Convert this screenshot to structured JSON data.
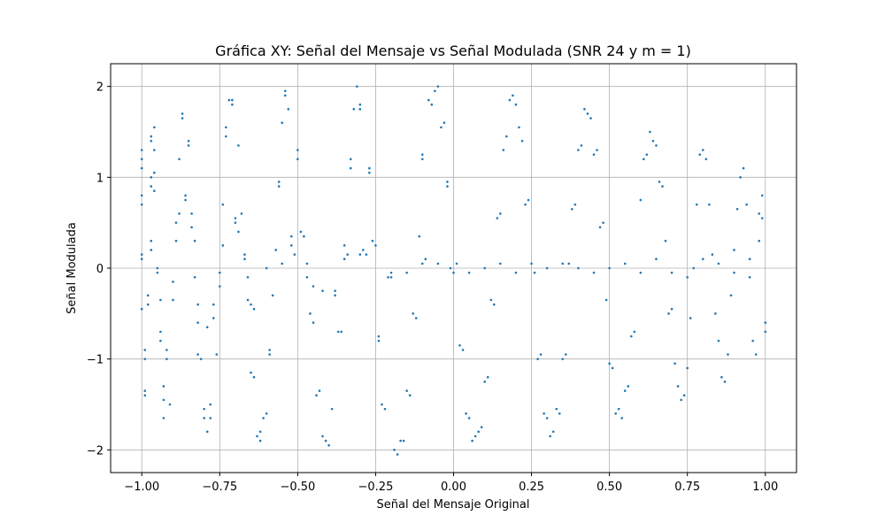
{
  "chart_data": {
    "type": "scatter",
    "title": "Gráfica XY: Señal del Mensaje vs Señal Modulada (SNR 24 y m = 1)",
    "xlabel": "Señal del Mensaje Original",
    "ylabel": "Señal Modulada",
    "xlim": [
      -1.1,
      1.1
    ],
    "ylim": [
      -2.25,
      2.25
    ],
    "grid": true,
    "marker_color": "#1f77b4",
    "x_ticks": [
      -1.0,
      -0.75,
      -0.5,
      -0.25,
      0.0,
      0.25,
      0.5,
      0.75,
      1.0
    ],
    "x_tick_labels": [
      "−1.00",
      "−0.75",
      "−0.50",
      "−0.25",
      "0.00",
      "0.25",
      "0.50",
      "0.75",
      "1.00"
    ],
    "y_ticks": [
      -2,
      -1,
      0,
      1,
      2
    ],
    "y_tick_labels": [
      "−2",
      "−1",
      "0",
      "1",
      "2"
    ],
    "series": [
      {
        "points": [
          [
            -1.0,
            1.3
          ],
          [
            -1.0,
            1.2
          ],
          [
            -1.0,
            1.1
          ],
          [
            -1.0,
            0.8
          ],
          [
            -1.0,
            0.7
          ],
          [
            -1.0,
            0.15
          ],
          [
            -1.0,
            0.1
          ],
          [
            -1.0,
            -0.45
          ],
          [
            -0.99,
            -0.9
          ],
          [
            -0.99,
            -1.0
          ],
          [
            -0.99,
            -1.35
          ],
          [
            -0.99,
            -1.4
          ],
          [
            -0.98,
            -0.3
          ],
          [
            -0.98,
            -0.4
          ],
          [
            -0.97,
            1.4
          ],
          [
            -0.97,
            1.45
          ],
          [
            -0.97,
            1.0
          ],
          [
            -0.97,
            0.9
          ],
          [
            -0.97,
            0.3
          ],
          [
            -0.97,
            0.2
          ],
          [
            -0.96,
            1.55
          ],
          [
            -0.96,
            1.3
          ],
          [
            -0.96,
            1.05
          ],
          [
            -0.96,
            0.85
          ],
          [
            -0.95,
            0.0
          ],
          [
            -0.95,
            -0.05
          ],
          [
            -0.94,
            -0.35
          ],
          [
            -0.94,
            -0.7
          ],
          [
            -0.94,
            -0.8
          ],
          [
            -0.93,
            -1.3
          ],
          [
            -0.93,
            -1.45
          ],
          [
            -0.93,
            -1.65
          ],
          [
            -0.92,
            -0.9
          ],
          [
            -0.92,
            -1.0
          ],
          [
            -0.91,
            -1.5
          ],
          [
            -0.9,
            -0.35
          ],
          [
            -0.9,
            -0.15
          ],
          [
            -0.89,
            0.3
          ],
          [
            -0.89,
            0.5
          ],
          [
            -0.88,
            0.6
          ],
          [
            -0.88,
            1.2
          ],
          [
            -0.87,
            1.65
          ],
          [
            -0.87,
            1.7
          ],
          [
            -0.86,
            0.8
          ],
          [
            -0.86,
            0.75
          ],
          [
            -0.85,
            1.4
          ],
          [
            -0.85,
            1.35
          ],
          [
            -0.84,
            0.6
          ],
          [
            -0.84,
            0.45
          ],
          [
            -0.83,
            0.3
          ],
          [
            -0.83,
            -0.1
          ],
          [
            -0.82,
            -0.4
          ],
          [
            -0.82,
            -0.6
          ],
          [
            -0.82,
            -0.95
          ],
          [
            -0.81,
            -1.0
          ],
          [
            -0.8,
            -1.55
          ],
          [
            -0.8,
            -1.65
          ],
          [
            -0.79,
            -1.8
          ],
          [
            -0.79,
            -0.65
          ],
          [
            -0.78,
            -1.5
          ],
          [
            -0.78,
            -1.65
          ],
          [
            -0.77,
            -0.55
          ],
          [
            -0.77,
            -0.4
          ],
          [
            -0.76,
            -0.95
          ],
          [
            -0.75,
            -0.2
          ],
          [
            -0.75,
            -0.05
          ],
          [
            -0.74,
            0.25
          ],
          [
            -0.74,
            0.7
          ],
          [
            -0.73,
            1.45
          ],
          [
            -0.73,
            1.55
          ],
          [
            -0.72,
            1.85
          ],
          [
            -0.71,
            1.85
          ],
          [
            -0.71,
            1.8
          ],
          [
            -0.7,
            0.5
          ],
          [
            -0.7,
            0.55
          ],
          [
            -0.69,
            1.35
          ],
          [
            -0.69,
            0.4
          ],
          [
            -0.68,
            0.6
          ],
          [
            -0.67,
            0.1
          ],
          [
            -0.67,
            0.15
          ],
          [
            -0.66,
            -0.1
          ],
          [
            -0.66,
            -0.35
          ],
          [
            -0.65,
            -0.4
          ],
          [
            -0.65,
            -1.15
          ],
          [
            -0.64,
            -1.2
          ],
          [
            -0.64,
            -0.45
          ],
          [
            -0.63,
            -1.85
          ],
          [
            -0.62,
            -1.8
          ],
          [
            -0.62,
            -1.9
          ],
          [
            -0.61,
            -1.65
          ],
          [
            -0.6,
            -1.6
          ],
          [
            -0.59,
            -0.95
          ],
          [
            -0.59,
            -0.9
          ],
          [
            -0.58,
            -0.3
          ],
          [
            -0.57,
            0.2
          ],
          [
            -0.56,
            0.9
          ],
          [
            -0.56,
            0.95
          ],
          [
            -0.55,
            1.6
          ],
          [
            -0.54,
            1.9
          ],
          [
            -0.54,
            1.95
          ],
          [
            -0.53,
            1.75
          ],
          [
            -0.52,
            0.35
          ],
          [
            -0.52,
            0.25
          ],
          [
            -0.51,
            0.15
          ],
          [
            -0.5,
            1.2
          ],
          [
            -0.5,
            1.3
          ],
          [
            -0.49,
            0.4
          ],
          [
            -0.48,
            0.35
          ],
          [
            -0.47,
            0.05
          ],
          [
            -0.47,
            -0.1
          ],
          [
            -0.46,
            -0.5
          ],
          [
            -0.45,
            -0.6
          ],
          [
            -0.44,
            -1.4
          ],
          [
            -0.43,
            -1.35
          ],
          [
            -0.42,
            -1.85
          ],
          [
            -0.41,
            -1.9
          ],
          [
            -0.4,
            -1.95
          ],
          [
            -0.39,
            -1.55
          ],
          [
            -0.38,
            -0.25
          ],
          [
            -0.38,
            -0.3
          ],
          [
            -0.37,
            -0.7
          ],
          [
            -0.36,
            -0.7
          ],
          [
            -0.35,
            0.25
          ],
          [
            -0.34,
            0.15
          ],
          [
            -0.33,
            1.2
          ],
          [
            -0.33,
            1.1
          ],
          [
            -0.32,
            1.75
          ],
          [
            -0.31,
            2.0
          ],
          [
            -0.3,
            1.8
          ],
          [
            -0.3,
            1.75
          ],
          [
            -0.29,
            0.2
          ],
          [
            -0.28,
            0.15
          ],
          [
            -0.27,
            1.05
          ],
          [
            -0.27,
            1.1
          ],
          [
            -0.26,
            0.3
          ],
          [
            -0.25,
            0.25
          ],
          [
            -0.24,
            -0.75
          ],
          [
            -0.24,
            -0.8
          ],
          [
            -0.23,
            -1.5
          ],
          [
            -0.22,
            -1.55
          ],
          [
            -0.21,
            -0.1
          ],
          [
            -0.2,
            -0.05
          ],
          [
            -0.19,
            -2.0
          ],
          [
            -0.18,
            -2.05
          ],
          [
            -0.17,
            -1.9
          ],
          [
            -0.16,
            -1.9
          ],
          [
            -0.15,
            -1.35
          ],
          [
            -0.14,
            -1.4
          ],
          [
            -0.13,
            -0.5
          ],
          [
            -0.12,
            -0.55
          ],
          [
            -0.11,
            0.35
          ],
          [
            -0.1,
            1.2
          ],
          [
            -0.1,
            1.25
          ],
          [
            -0.09,
            0.1
          ],
          [
            -0.08,
            1.85
          ],
          [
            -0.07,
            1.8
          ],
          [
            -0.06,
            1.95
          ],
          [
            -0.05,
            2.0
          ],
          [
            -0.04,
            1.55
          ],
          [
            -0.03,
            1.6
          ],
          [
            -0.02,
            0.9
          ],
          [
            -0.02,
            0.95
          ],
          [
            -0.01,
            0.0
          ],
          [
            0.0,
            -0.05
          ],
          [
            0.01,
            0.05
          ],
          [
            0.02,
            -0.85
          ],
          [
            0.03,
            -0.9
          ],
          [
            0.04,
            -1.6
          ],
          [
            0.05,
            -1.65
          ],
          [
            0.06,
            -1.9
          ],
          [
            0.07,
            -1.85
          ],
          [
            0.08,
            -1.8
          ],
          [
            0.09,
            -1.75
          ],
          [
            0.1,
            -1.25
          ],
          [
            0.11,
            -1.2
          ],
          [
            0.12,
            -0.35
          ],
          [
            0.13,
            -0.4
          ],
          [
            0.14,
            0.55
          ],
          [
            0.15,
            0.6
          ],
          [
            0.16,
            1.3
          ],
          [
            0.17,
            1.45
          ],
          [
            0.18,
            1.85
          ],
          [
            0.19,
            1.9
          ],
          [
            0.2,
            1.8
          ],
          [
            0.21,
            1.55
          ],
          [
            0.22,
            1.4
          ],
          [
            0.23,
            0.7
          ],
          [
            0.24,
            0.75
          ],
          [
            0.25,
            0.05
          ],
          [
            0.26,
            -0.05
          ],
          [
            0.27,
            -1.0
          ],
          [
            0.28,
            -0.95
          ],
          [
            0.29,
            -1.6
          ],
          [
            0.3,
            -1.65
          ],
          [
            0.31,
            -1.85
          ],
          [
            0.32,
            -1.8
          ],
          [
            0.33,
            -1.55
          ],
          [
            0.34,
            -1.6
          ],
          [
            0.35,
            -1.0
          ],
          [
            0.36,
            -0.95
          ],
          [
            0.37,
            0.05
          ],
          [
            0.38,
            0.65
          ],
          [
            0.39,
            0.7
          ],
          [
            0.4,
            1.3
          ],
          [
            0.41,
            1.35
          ],
          [
            0.42,
            1.75
          ],
          [
            0.43,
            1.7
          ],
          [
            0.44,
            1.65
          ],
          [
            0.45,
            1.25
          ],
          [
            0.46,
            1.3
          ],
          [
            0.47,
            0.45
          ],
          [
            0.48,
            0.5
          ],
          [
            0.49,
            -0.35
          ],
          [
            0.5,
            -1.05
          ],
          [
            0.51,
            -1.1
          ],
          [
            0.52,
            -1.6
          ],
          [
            0.53,
            -1.55
          ],
          [
            0.54,
            -1.65
          ],
          [
            0.55,
            -1.35
          ],
          [
            0.56,
            -1.3
          ],
          [
            0.57,
            -0.75
          ],
          [
            0.58,
            -0.7
          ],
          [
            0.6,
            0.75
          ],
          [
            0.61,
            1.2
          ],
          [
            0.62,
            1.25
          ],
          [
            0.63,
            1.5
          ],
          [
            0.64,
            1.4
          ],
          [
            0.65,
            1.35
          ],
          [
            0.66,
            0.95
          ],
          [
            0.67,
            0.9
          ],
          [
            0.68,
            0.3
          ],
          [
            0.69,
            -0.5
          ],
          [
            0.7,
            -0.45
          ],
          [
            0.71,
            -1.05
          ],
          [
            0.72,
            -1.3
          ],
          [
            0.73,
            -1.45
          ],
          [
            0.74,
            -1.4
          ],
          [
            0.75,
            -1.1
          ],
          [
            0.76,
            -0.55
          ],
          [
            0.77,
            0.0
          ],
          [
            0.78,
            0.7
          ],
          [
            0.79,
            1.25
          ],
          [
            0.8,
            1.3
          ],
          [
            0.81,
            1.2
          ],
          [
            0.82,
            0.7
          ],
          [
            0.83,
            0.15
          ],
          [
            0.84,
            -0.5
          ],
          [
            0.85,
            -0.8
          ],
          [
            0.86,
            -1.2
          ],
          [
            0.87,
            -1.25
          ],
          [
            0.88,
            -0.95
          ],
          [
            0.89,
            -0.3
          ],
          [
            0.9,
            0.2
          ],
          [
            0.91,
            0.65
          ],
          [
            0.92,
            1.0
          ],
          [
            0.93,
            1.1
          ],
          [
            0.94,
            0.7
          ],
          [
            0.95,
            -0.1
          ],
          [
            0.96,
            -0.8
          ],
          [
            0.97,
            -0.95
          ],
          [
            0.98,
            0.3
          ],
          [
            0.98,
            0.6
          ],
          [
            0.99,
            0.8
          ],
          [
            0.99,
            0.55
          ],
          [
            1.0,
            -0.6
          ],
          [
            1.0,
            -0.7
          ],
          [
            -0.6,
            0.0
          ],
          [
            -0.55,
            0.05
          ],
          [
            -0.45,
            -0.2
          ],
          [
            -0.42,
            -0.25
          ],
          [
            -0.35,
            0.1
          ],
          [
            -0.3,
            0.15
          ],
          [
            -0.2,
            -0.1
          ],
          [
            -0.15,
            -0.05
          ],
          [
            -0.1,
            0.05
          ],
          [
            -0.05,
            0.05
          ],
          [
            0.05,
            -0.05
          ],
          [
            0.1,
            0.0
          ],
          [
            0.15,
            0.05
          ],
          [
            0.2,
            -0.05
          ],
          [
            0.3,
            0.0
          ],
          [
            0.35,
            0.05
          ],
          [
            0.4,
            0.0
          ],
          [
            0.45,
            -0.05
          ],
          [
            0.5,
            0.0
          ],
          [
            0.55,
            0.05
          ],
          [
            0.6,
            -0.05
          ],
          [
            0.65,
            0.1
          ],
          [
            0.7,
            -0.05
          ],
          [
            0.75,
            -0.1
          ],
          [
            0.8,
            0.1
          ],
          [
            0.85,
            0.05
          ],
          [
            0.9,
            -0.05
          ],
          [
            0.95,
            0.1
          ]
        ]
      }
    ]
  }
}
